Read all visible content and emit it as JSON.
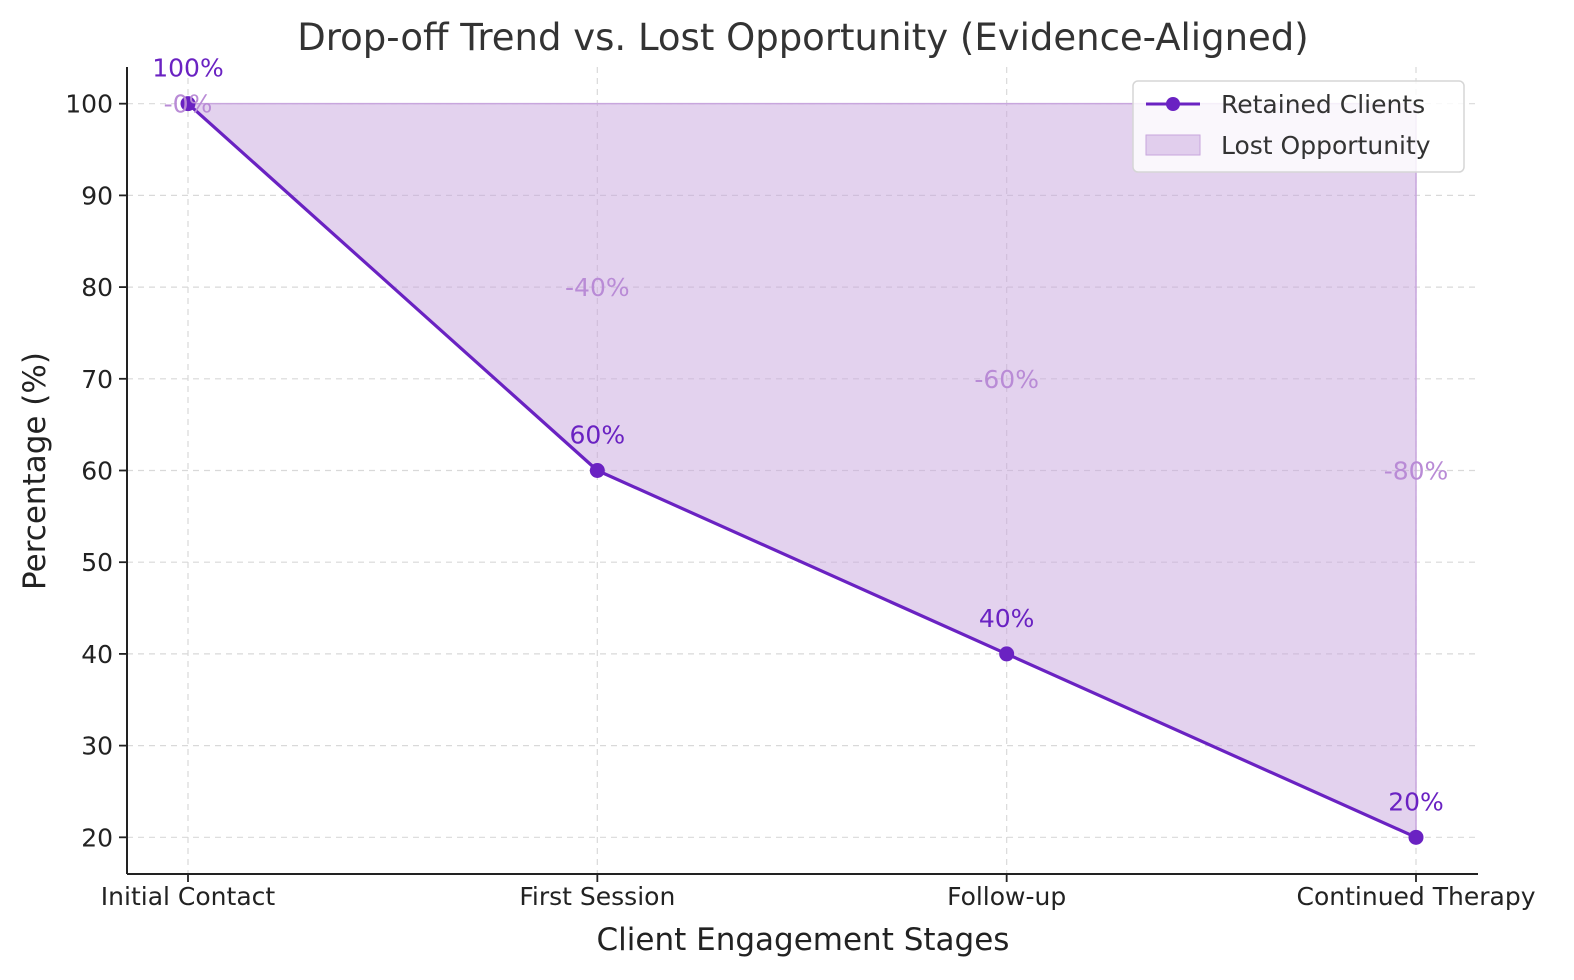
{
  "chart_data": {
    "type": "line",
    "title": "Drop-off Trend vs. Lost Opportunity (Evidence-Aligned)",
    "xlabel": "Client Engagement Stages",
    "ylabel": "Percentage (%)",
    "categories": [
      "Initial Contact",
      "First Session",
      "Follow-up",
      "Continued Therapy"
    ],
    "ylim": [
      16,
      104
    ],
    "yticks": [
      20,
      30,
      40,
      50,
      60,
      70,
      80,
      90,
      100
    ],
    "grid": true,
    "legend_position": "top-right",
    "series": [
      {
        "name": "Retained Clients",
        "kind": "line",
        "color": "#6a22c2",
        "values": [
          100,
          60,
          40,
          20
        ],
        "labels": [
          "100%",
          "60%",
          "40%",
          "20%"
        ]
      },
      {
        "name": "Lost Opportunity",
        "kind": "area",
        "color": "#c8a6dd",
        "fill_between_upper": 100,
        "values": [
          0,
          -40,
          -60,
          -80
        ],
        "labels": [
          "-0%",
          "-40%",
          "-60%",
          "-80%"
        ],
        "label_color": "#b98bd6"
      }
    ]
  }
}
